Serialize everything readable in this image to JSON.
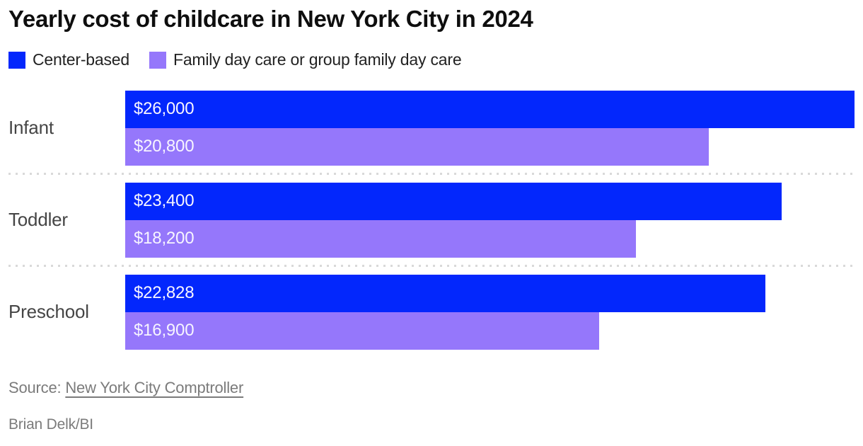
{
  "title": "Yearly cost of childcare in New York City in 2024",
  "legend": [
    {
      "label": "Center-based",
      "color": "#0327fc"
    },
    {
      "label": "Family day care or group family day care",
      "color": "#9577fb"
    }
  ],
  "chart_data": {
    "type": "bar",
    "orientation": "horizontal",
    "title": "Yearly cost of childcare in New York City in 2024",
    "categories": [
      "Infant",
      "Toddler",
      "Preschool"
    ],
    "series": [
      {
        "name": "Center-based",
        "color": "#0327fc",
        "values": [
          26000,
          23400,
          22828
        ]
      },
      {
        "name": "Family day care or group family day care",
        "color": "#9577fb",
        "values": [
          20800,
          18200,
          16900
        ]
      }
    ],
    "value_labels": [
      [
        "$26,000",
        "$20,800"
      ],
      [
        "$23,400",
        "$18,200"
      ],
      [
        "$22,828",
        "$16,900"
      ]
    ],
    "xlim": [
      0,
      26000
    ],
    "grid": "off",
    "legend_position": "top",
    "value_label_position": "inside-left",
    "separator_style": "dotted"
  },
  "footer": {
    "source_prefix": "Source: ",
    "source_link": "New York City Comptroller",
    "byline": "Brian Delk/BI"
  },
  "colors": {
    "background": "#ffffff",
    "title_text": "#0e0e0e",
    "category_text": "#454545",
    "bar_value_text": "#f7f5ff",
    "separator": "#d9d9d9",
    "footer_text": "#7b7b7b"
  }
}
